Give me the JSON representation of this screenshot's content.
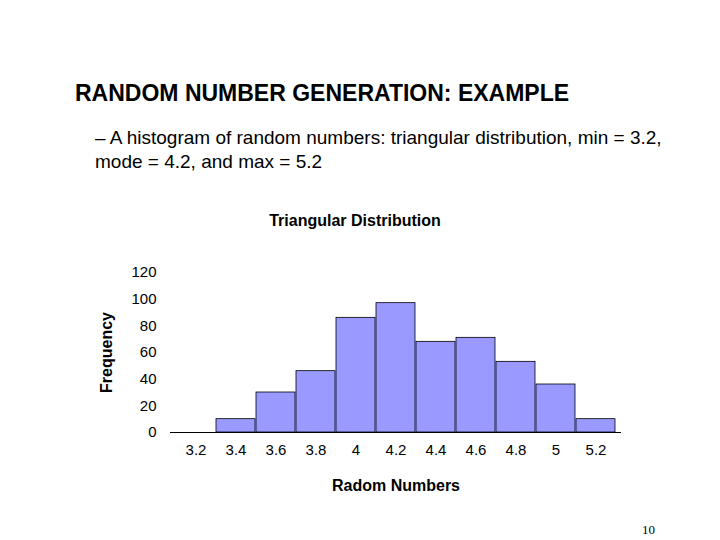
{
  "title": "RANDOM NUMBER GENERATION: EXAMPLE",
  "bullet": "– A histogram of random numbers: triangular distribution, min = 3.2, mode = 4.2, and max = 5.2",
  "page_number": "10",
  "chart_data": {
    "type": "bar",
    "title": "Triangular Distribution",
    "x_label": "Radom Numbers",
    "y_label": "Frequency",
    "categories": [
      "3.2",
      "3.4",
      "3.6",
      "3.8",
      "4",
      "4.2",
      "4.4",
      "4.6",
      "4.8",
      "5",
      "5.2"
    ],
    "values": [
      0,
      10,
      30,
      46,
      86,
      97,
      68,
      71,
      53,
      36,
      10
    ],
    "color": "#9999ff",
    "ylim": [
      0,
      120
    ],
    "yticks": [
      0,
      20,
      40,
      60,
      80,
      100,
      120
    ],
    "grid": false
  }
}
